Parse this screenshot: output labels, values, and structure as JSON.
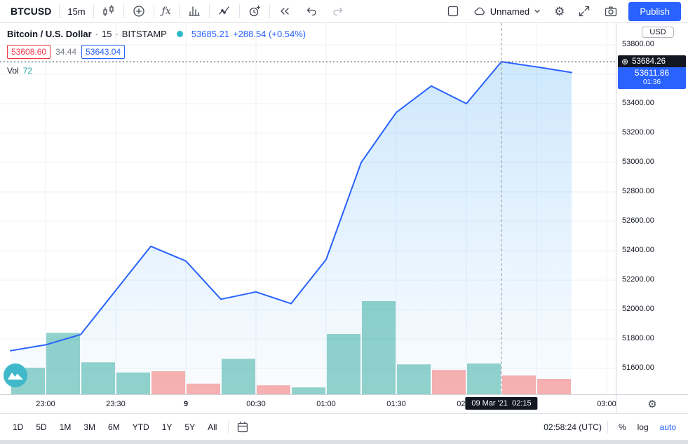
{
  "topbar": {
    "symbol": "BTCUSD",
    "interval": "15m",
    "saved_layout": "Unnamed",
    "publish": "Publish"
  },
  "legend": {
    "title": "Bitcoin / U.S. Dollar",
    "sep": "·",
    "interval": "15",
    "exchange": "BITSTAMP",
    "price": "53685.21",
    "change": "+288.54 (+0.54%)",
    "bid": "53608.60",
    "spread": "34.44",
    "ask": "53643.04",
    "vol_label": "Vol",
    "vol_value": "72"
  },
  "bottom_bar": {
    "ranges": [
      "1D",
      "5D",
      "1M",
      "3M",
      "6M",
      "YTD",
      "1Y",
      "5Y",
      "All"
    ],
    "clock": "02:58:24 (UTC)",
    "percent": "%",
    "log": "log",
    "auto": "auto"
  },
  "chart_data": {
    "type": "area",
    "title": "Bitcoin / U.S. Dollar, 15, BITSTAMP",
    "series": {
      "name": "BTCUSD close",
      "x_times": [
        "22:45",
        "23:00",
        "23:15",
        "23:30",
        "23:45",
        "00:00",
        "00:15",
        "00:30",
        "00:45",
        "01:00",
        "01:15",
        "01:30",
        "01:45",
        "02:00",
        "02:15",
        "02:30",
        "02:45"
      ],
      "x_minutes_from_2300": [
        -15,
        0,
        15,
        30,
        45,
        60,
        75,
        90,
        105,
        120,
        135,
        150,
        165,
        180,
        195,
        210,
        225
      ],
      "prices": [
        51720,
        51760,
        51830,
        52130,
        52430,
        52330,
        52070,
        52120,
        52040,
        52340,
        53000,
        53340,
        53520,
        53400,
        53685.21,
        53650,
        53611.86
      ]
    },
    "volume": {
      "values": [
        62,
        144,
        75,
        51,
        54,
        25,
        83,
        21,
        16,
        141,
        218,
        70,
        57,
        72,
        44,
        36
      ],
      "directions": [
        "up",
        "up",
        "up",
        "up",
        "down",
        "down",
        "up",
        "down",
        "up",
        "up",
        "up",
        "up",
        "down",
        "up",
        "down",
        "down"
      ],
      "crosshair_value": 72
    },
    "y_axis": {
      "currency": "USD",
      "tick_labels": [
        "53800.00",
        "53400.00",
        "53200.00",
        "53000.00",
        "52800.00",
        "52600.00",
        "52400.00",
        "52200.00",
        "52000.00",
        "51800.00",
        "51600.00"
      ],
      "tick_step": 200,
      "visible_range": [
        51550,
        53850
      ]
    },
    "x_axis": {
      "labels": [
        {
          "text": "23:00",
          "m": 0
        },
        {
          "text": "23:30",
          "m": 30
        },
        {
          "text": "9",
          "m": 60,
          "bold": true
        },
        {
          "text": "00:30",
          "m": 90
        },
        {
          "text": "01:00",
          "m": 120
        },
        {
          "text": "01:30",
          "m": 150
        },
        {
          "text": "02:00",
          "m": 180
        },
        {
          "text": "03:00",
          "m": 240
        }
      ],
      "crosshair": {
        "text": "09 Mar '21  02:15",
        "m": 195
      }
    },
    "crosshair_price": "53684.26",
    "last_price": "53611.86",
    "countdown": "01:36"
  },
  "colors": {
    "accent_blue": "#2962ff",
    "teal": "#26a69a",
    "red": "#f23645",
    "line_blue": "#2962ff",
    "area_fill": "#2196f3",
    "vol_up": "rgba(38,166,154,0.5)",
    "vol_down": "rgba(239,83,80,0.45)",
    "badge_dark": "#131722"
  }
}
